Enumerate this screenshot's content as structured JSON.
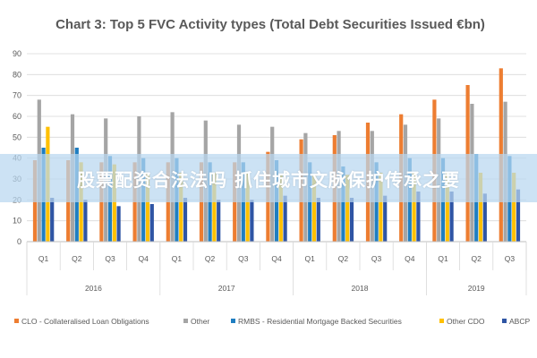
{
  "chart_data": {
    "type": "bar",
    "title": "Chart 3: Top 5 FVC Activity types (Total Debt Securities Issued €bn)",
    "ylim": [
      0,
      90
    ],
    "yticks": [
      0,
      10,
      20,
      30,
      40,
      50,
      60,
      70,
      80,
      90
    ],
    "grid": true,
    "legend_position": "bottom",
    "categories": [
      "Q1",
      "Q2",
      "Q3",
      "Q4",
      "Q1",
      "Q2",
      "Q3",
      "Q4",
      "Q1",
      "Q2",
      "Q3",
      "Q4",
      "Q1",
      "Q2",
      "Q3"
    ],
    "years": [
      {
        "label": "2016",
        "quarters": 4
      },
      {
        "label": "2017",
        "quarters": 4
      },
      {
        "label": "2018",
        "quarters": 4
      },
      {
        "label": "2019",
        "quarters": 3
      }
    ],
    "series": [
      {
        "name": "CLO - Collateralised Loan Obligations",
        "color": "#ED7D31",
        "values": [
          39,
          39,
          38,
          38,
          38,
          38,
          38,
          43,
          49,
          51,
          57,
          61,
          68,
          75,
          83
        ]
      },
      {
        "name": "Other",
        "color": "#A5A5A5",
        "values": [
          68,
          61,
          59,
          60,
          62,
          58,
          56,
          55,
          52,
          53,
          53,
          56,
          59,
          66,
          67
        ]
      },
      {
        "name": "RMBS - Residential Mortgage Backed Securities",
        "color": "#1F7EC1",
        "values": [
          45,
          45,
          41,
          40,
          40,
          38,
          38,
          39,
          38,
          36,
          38,
          40,
          40,
          42,
          41
        ]
      },
      {
        "name": "Other CDO",
        "color": "#FFC000",
        "values": [
          55,
          38,
          37,
          33,
          33,
          33,
          33,
          32,
          32,
          32,
          33,
          33,
          33,
          33,
          33
        ]
      },
      {
        "name": "ABCP",
        "color": "#2F55A4",
        "values": [
          21,
          20,
          17,
          18,
          21,
          20,
          20,
          22,
          21,
          21,
          22,
          24,
          24,
          23,
          25
        ]
      }
    ]
  },
  "overlay": {
    "banner_text": "股票配资合法法吗 抓住城市文脉保护传承之要"
  }
}
